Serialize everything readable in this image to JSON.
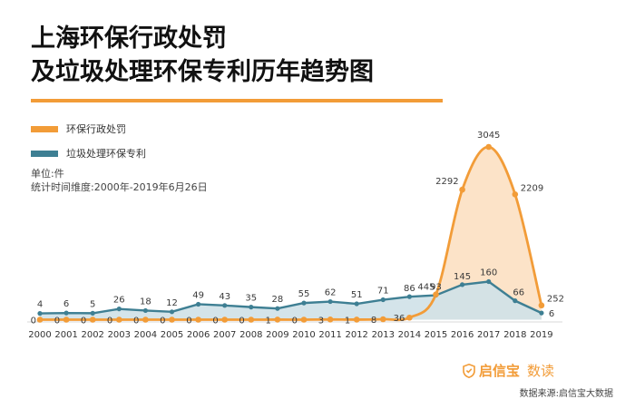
{
  "title": {
    "line1": "上海环保行政处罚",
    "line2": "及垃圾处理环保专利历年趋势图"
  },
  "colors": {
    "orange": "#f29c38",
    "teal": "#3e7f93",
    "tealFill": "#cfe1e8",
    "orangeFill": "#fbd9b5"
  },
  "legend": [
    {
      "label": "环保行政处罚",
      "color": "#f29c38"
    },
    {
      "label": "垃圾处理环保专利",
      "color": "#3e7f93"
    }
  ],
  "meta": {
    "unit": "单位:件",
    "period": "统计时间维度:2000年-2019年6月26日"
  },
  "chart_data": {
    "type": "area",
    "x": [
      "2000",
      "2001",
      "2002",
      "2003",
      "2004",
      "2005",
      "2006",
      "2007",
      "2008",
      "2009",
      "2010",
      "2011",
      "2012",
      "2013",
      "2014",
      "2015",
      "2016",
      "2017",
      "2018",
      "2019"
    ],
    "series": [
      {
        "name": "环保行政处罚",
        "color": "#f29c38",
        "values": [
          0,
          0,
          0,
          0,
          0,
          0,
          0,
          0,
          0,
          1,
          0,
          3,
          1,
          8,
          36,
          445,
          2292,
          3045,
          2209,
          252
        ]
      },
      {
        "name": "垃圾处理环保专利",
        "color": "#3e7f93",
        "values": [
          4,
          6,
          5,
          26,
          18,
          12,
          49,
          43,
          35,
          28,
          55,
          62,
          51,
          71,
          86,
          93,
          145,
          160,
          66,
          6
        ]
      }
    ],
    "grid": false,
    "legend_position": "top-left"
  },
  "brand": {
    "name": "启信宝",
    "sub": "数读",
    "icon": "shield-icon"
  },
  "source": "数据来源:启信宝大数据"
}
